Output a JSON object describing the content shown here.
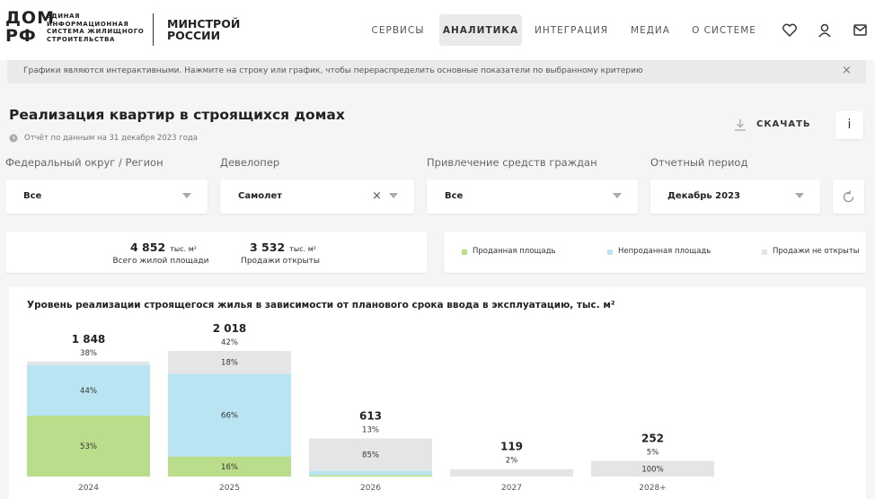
{
  "header": {
    "logo_mark": [
      "ДОМ",
      "РФ"
    ],
    "logo_lines": [
      "ЕДИНАЯ",
      "ИНФОРМАЦИОННАЯ",
      "СИСТЕМА ЖИЛИЩНОГО",
      "СТРОИТЕЛЬСТВА"
    ],
    "ministry": [
      "МИНСТРОЙ",
      "РОССИИ"
    ],
    "nav": [
      "СЕРВИСЫ",
      "АНАЛИТИКА",
      "ИНТЕГРАЦИЯ",
      "МЕДИА",
      "О СИСТЕМЕ"
    ],
    "active_nav": 1
  },
  "notice": "Графики являются интерактивными. Нажмите на строку или график, чтобы перераспределить основные показатели по выбранному критерию",
  "page": {
    "title": "Реализация квартир в строящихся домах",
    "subtitle": "Отчёт по данным на 31 декабря 2023 года",
    "download": "СКАЧАТЬ",
    "info": "i"
  },
  "filters": [
    {
      "label": "Федеральный округ / Регион",
      "value": "Все"
    },
    {
      "label": "Девелопер",
      "value": "Самолет"
    },
    {
      "label": "Привлечение средств граждан",
      "value": "Все"
    },
    {
      "label": "Отчетный период",
      "value": "Декабрь 2023"
    }
  ],
  "summary": [
    {
      "value": "4 852",
      "unit": "тыс. м²",
      "label": "Всего жилой площади"
    },
    {
      "value": "3 532",
      "unit": "тыс. м²",
      "label": "Продажи открыты"
    }
  ],
  "chart": {
    "title": "Уровень реализации строящегося жилья в зависимости от планового срока ввода в эксплуатацию, тыс. м²",
    "categories": [
      "2024",
      "2025",
      "2026",
      "2027",
      "2028+"
    ],
    "totals": [
      1848,
      2018,
      613,
      119,
      252
    ],
    "total_labels": [
      "1 848",
      "2 018",
      "613",
      "119",
      "252"
    ],
    "share_labels": [
      "38%",
      "42%",
      "13%",
      "2%",
      "5%"
    ],
    "series": [
      {
        "name": "Проданная площадь",
        "color": "#b9dd8b",
        "values": [
          53,
          16,
          4,
          0,
          0
        ],
        "value_labels": [
          "53%",
          "16%",
          null,
          null,
          null
        ]
      },
      {
        "name": "Непроданная площадь",
        "color": "#b9e5f3",
        "values": [
          44,
          66,
          11,
          0,
          0
        ],
        "value_labels": [
          "44%",
          "66%",
          null,
          null,
          null
        ]
      },
      {
        "name": "Продажи не открыты",
        "color": "#e3e5e6",
        "values": [
          3,
          18,
          85,
          100,
          100
        ],
        "value_labels": [
          null,
          "18%",
          "85%",
          null,
          "100%"
        ]
      }
    ]
  }
}
